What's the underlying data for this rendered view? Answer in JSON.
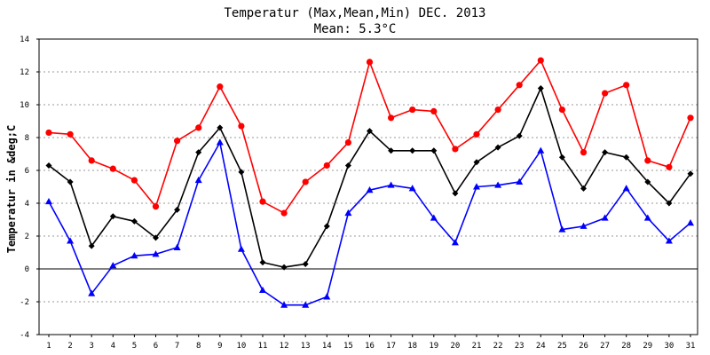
{
  "chart_data": {
    "type": "line",
    "title": "Temperatur (Max,Mean,Min) DEC. 2013",
    "subtitle": "Mean: 5.3°C",
    "xlabel": "",
    "ylabel": "Temperatur in &deg;C",
    "ylim": [
      -4,
      14
    ],
    "yticks": [
      -4,
      -2,
      0,
      2,
      4,
      6,
      8,
      10,
      12,
      14
    ],
    "grid": true,
    "categories": [
      "1",
      "2",
      "3",
      "4",
      "5",
      "6",
      "7",
      "8",
      "9",
      "10",
      "11",
      "12",
      "13",
      "14",
      "15",
      "16",
      "17",
      "18",
      "19",
      "20",
      "21",
      "22",
      "23",
      "24",
      "25",
      "26",
      "27",
      "28",
      "29",
      "30",
      "31"
    ],
    "series": [
      {
        "name": "Max",
        "color": "#ff0000",
        "marker": "circle",
        "values": [
          8.3,
          8.2,
          6.6,
          6.1,
          5.4,
          3.8,
          7.8,
          8.6,
          11.1,
          8.7,
          4.1,
          3.4,
          5.3,
          6.3,
          7.7,
          12.6,
          9.2,
          9.7,
          9.6,
          7.3,
          8.2,
          9.7,
          11.2,
          12.7,
          9.7,
          7.1,
          10.7,
          11.2,
          6.6,
          6.2,
          9.2
        ]
      },
      {
        "name": "Mean",
        "color": "#000000",
        "marker": "diamond",
        "values": [
          6.3,
          5.3,
          1.4,
          3.2,
          2.9,
          1.9,
          3.6,
          7.1,
          8.6,
          5.9,
          0.4,
          0.1,
          0.3,
          2.6,
          6.3,
          8.4,
          7.2,
          7.2,
          7.2,
          4.6,
          6.5,
          7.4,
          8.1,
          11.0,
          6.8,
          4.9,
          7.1,
          6.8,
          5.3,
          4.0,
          5.8
        ]
      },
      {
        "name": "Min",
        "color": "#0000ff",
        "marker": "triangle",
        "values": [
          4.1,
          1.7,
          -1.5,
          0.2,
          0.8,
          0.9,
          1.3,
          5.4,
          7.7,
          1.2,
          -1.3,
          -2.2,
          -2.2,
          -1.7,
          3.4,
          4.8,
          5.1,
          4.9,
          3.1,
          1.6,
          5.0,
          5.1,
          5.3,
          7.2,
          2.4,
          2.6,
          3.1,
          4.9,
          3.1,
          1.7,
          2.8
        ]
      }
    ]
  }
}
